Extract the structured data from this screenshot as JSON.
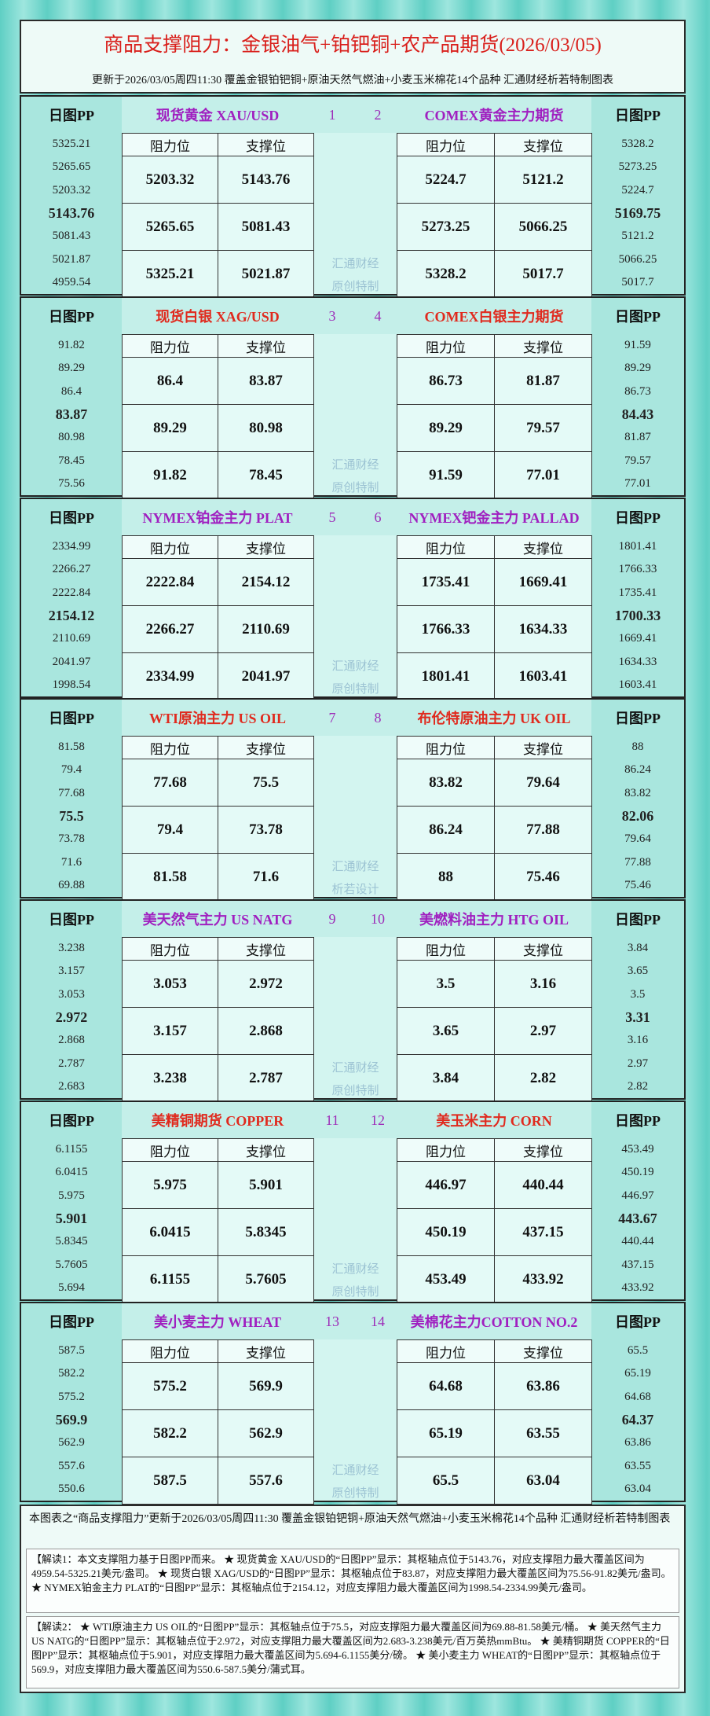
{
  "header": {
    "title": "商品支撑阻力：金银油气+铂钯铜+农产品期货(2026/03/05)",
    "subtitle": "更新于2026/03/05周四11:30 覆盖金银铂钯铜+原油天然气燃油+小麦玉米棉花14个品种 汇通财经析若特制图表"
  },
  "labels": {
    "pp": "日图PP",
    "resistance": "阻力位",
    "support": "支撑位"
  },
  "blocks": [
    {
      "watermark": [
        "汇通财经",
        "原创特制"
      ],
      "left": {
        "name": "现货黄金 XAU/USD",
        "number": "1",
        "color": "#a020c0",
        "pp": [
          "5325.21",
          "5265.65",
          "5203.32",
          "5143.76",
          "5081.43",
          "5021.87",
          "4959.54"
        ],
        "rows": [
          [
            "5203.32",
            "5143.76"
          ],
          [
            "5265.65",
            "5081.43"
          ],
          [
            "5325.21",
            "5021.87"
          ]
        ]
      },
      "right": {
        "name": "COMEX黄金主力期货",
        "number": "2",
        "color": "#a020c0",
        "pp": [
          "5328.2",
          "5273.25",
          "5224.7",
          "5169.75",
          "5121.2",
          "5066.25",
          "5017.7"
        ],
        "rows": [
          [
            "5224.7",
            "5121.2"
          ],
          [
            "5273.25",
            "5066.25"
          ],
          [
            "5328.2",
            "5017.7"
          ]
        ]
      }
    },
    {
      "watermark": [
        "汇通财经",
        "原创特制"
      ],
      "left": {
        "name": "现货白银 XAG/USD",
        "number": "3",
        "color": "#e02a1e",
        "pp": [
          "91.82",
          "89.29",
          "86.4",
          "83.87",
          "80.98",
          "78.45",
          "75.56"
        ],
        "rows": [
          [
            "86.4",
            "83.87"
          ],
          [
            "89.29",
            "80.98"
          ],
          [
            "91.82",
            "78.45"
          ]
        ]
      },
      "right": {
        "name": "COMEX白银主力期货",
        "number": "4",
        "color": "#e02a1e",
        "pp": [
          "91.59",
          "89.29",
          "86.73",
          "84.43",
          "81.87",
          "79.57",
          "77.01"
        ],
        "rows": [
          [
            "86.73",
            "81.87"
          ],
          [
            "89.29",
            "79.57"
          ],
          [
            "91.59",
            "77.01"
          ]
        ]
      }
    },
    {
      "watermark": [
        "汇通财经",
        "原创特制"
      ],
      "left": {
        "name": "NYMEX铂金主力 PLAT",
        "number": "5",
        "color": "#a020c0",
        "pp": [
          "2334.99",
          "2266.27",
          "2222.84",
          "2154.12",
          "2110.69",
          "2041.97",
          "1998.54"
        ],
        "rows": [
          [
            "2222.84",
            "2154.12"
          ],
          [
            "2266.27",
            "2110.69"
          ],
          [
            "2334.99",
            "2041.97"
          ]
        ]
      },
      "right": {
        "name": "NYMEX钯金主力 PALLAD",
        "number": "6",
        "color": "#a020c0",
        "pp": [
          "1801.41",
          "1766.33",
          "1735.41",
          "1700.33",
          "1669.41",
          "1634.33",
          "1603.41"
        ],
        "rows": [
          [
            "1735.41",
            "1669.41"
          ],
          [
            "1766.33",
            "1634.33"
          ],
          [
            "1801.41",
            "1603.41"
          ]
        ]
      }
    },
    {
      "watermark": [
        "汇通财经",
        "析若设计"
      ],
      "left": {
        "name": "WTI原油主力 US OIL",
        "number": "7",
        "color": "#e02a1e",
        "pp": [
          "81.58",
          "79.4",
          "77.68",
          "75.5",
          "73.78",
          "71.6",
          "69.88"
        ],
        "rows": [
          [
            "77.68",
            "75.5"
          ],
          [
            "79.4",
            "73.78"
          ],
          [
            "81.58",
            "71.6"
          ]
        ]
      },
      "right": {
        "name": "布伦特原油主力 UK OIL",
        "number": "8",
        "color": "#e02a1e",
        "pp": [
          "88",
          "86.24",
          "83.82",
          "82.06",
          "79.64",
          "77.88",
          "75.46"
        ],
        "rows": [
          [
            "83.82",
            "79.64"
          ],
          [
            "86.24",
            "77.88"
          ],
          [
            "88",
            "75.46"
          ]
        ]
      }
    },
    {
      "watermark": [
        "汇通财经",
        "原创特制"
      ],
      "left": {
        "name": "美天然气主力 US NATG",
        "number": "9",
        "color": "#a020c0",
        "pp": [
          "3.238",
          "3.157",
          "3.053",
          "2.972",
          "2.868",
          "2.787",
          "2.683"
        ],
        "rows": [
          [
            "3.053",
            "2.972"
          ],
          [
            "3.157",
            "2.868"
          ],
          [
            "3.238",
            "2.787"
          ]
        ]
      },
      "right": {
        "name": "美燃料油主力 HTG OIL",
        "number": "10",
        "color": "#a020c0",
        "pp": [
          "3.84",
          "3.65",
          "3.5",
          "3.31",
          "3.16",
          "2.97",
          "2.82"
        ],
        "rows": [
          [
            "3.5",
            "3.16"
          ],
          [
            "3.65",
            "2.97"
          ],
          [
            "3.84",
            "2.82"
          ]
        ]
      }
    },
    {
      "watermark": [
        "汇通财经",
        "原创特制"
      ],
      "left": {
        "name": "美精铜期货 COPPER",
        "number": "11",
        "color": "#e02a1e",
        "pp": [
          "6.1155",
          "6.0415",
          "5.975",
          "5.901",
          "5.8345",
          "5.7605",
          "5.694"
        ],
        "rows": [
          [
            "5.975",
            "5.901"
          ],
          [
            "6.0415",
            "5.8345"
          ],
          [
            "6.1155",
            "5.7605"
          ]
        ]
      },
      "right": {
        "name": "美玉米主力 CORN",
        "number": "12",
        "color": "#e02a1e",
        "pp": [
          "453.49",
          "450.19",
          "446.97",
          "443.67",
          "440.44",
          "437.15",
          "433.92"
        ],
        "rows": [
          [
            "446.97",
            "440.44"
          ],
          [
            "450.19",
            "437.15"
          ],
          [
            "453.49",
            "433.92"
          ]
        ]
      }
    },
    {
      "watermark": [
        "汇通财经",
        "原创特制"
      ],
      "left": {
        "name": "美小麦主力 WHEAT",
        "number": "13",
        "color": "#a020c0",
        "pp": [
          "587.5",
          "582.2",
          "575.2",
          "569.9",
          "562.9",
          "557.6",
          "550.6"
        ],
        "rows": [
          [
            "575.2",
            "569.9"
          ],
          [
            "582.2",
            "562.9"
          ],
          [
            "587.5",
            "557.6"
          ]
        ]
      },
      "right": {
        "name": "美棉花主力COTTON NO.2",
        "number": "14",
        "color": "#a020c0",
        "pp": [
          "65.5",
          "65.19",
          "64.68",
          "64.37",
          "63.86",
          "63.55",
          "63.04"
        ],
        "rows": [
          [
            "64.68",
            "63.86"
          ],
          [
            "65.19",
            "63.55"
          ],
          [
            "65.5",
            "63.04"
          ]
        ]
      }
    }
  ],
  "footer": {
    "note": "本图表之“商品支撑阻力”更新于2026/03/05周四11:30 覆盖金银铂钯铜+原油天然气燃油+小麦玉米棉花14个品种 汇通财经析若特制图表",
    "paragraphs": [
      "【解读1：本文支撑阻力基于日图PP而来。 ★ 现货黄金 XAU/USD的“日图PP”显示：其枢轴点位于5143.76，对应支撑阻力最大覆盖区间为4959.54-5325.21美元/盎司。 ★ 现货白银 XAG/USD的“日图PP”显示：其枢轴点位于83.87，对应支撑阻力最大覆盖区间为75.56-91.82美元/盎司。 ★ NYMEX铂金主力 PLAT的“日图PP”显示：其枢轴点位于2154.12，对应支撑阻力最大覆盖区间为1998.54-2334.99美元/盎司。",
      "【解读2： ★ WTI原油主力 US OIL的“日图PP”显示：其枢轴点位于75.5，对应支撑阻力最大覆盖区间为69.88-81.58美元/桶。 ★ 美天然气主力 US NATG的“日图PP”显示：其枢轴点位于2.972，对应支撑阻力最大覆盖区间为2.683-3.238美元/百万英热mmBtu。 ★ 美精铜期货 COPPER的“日图PP”显示：其枢轴点位于5.901，对应支撑阻力最大覆盖区间为5.694-6.1155美分/磅。 ★ 美小麦主力 WHEAT的“日图PP”显示：其枢轴点位于569.9，对应支撑阻力最大覆盖区间为550.6-587.5美分/蒲式耳。"
    ]
  }
}
